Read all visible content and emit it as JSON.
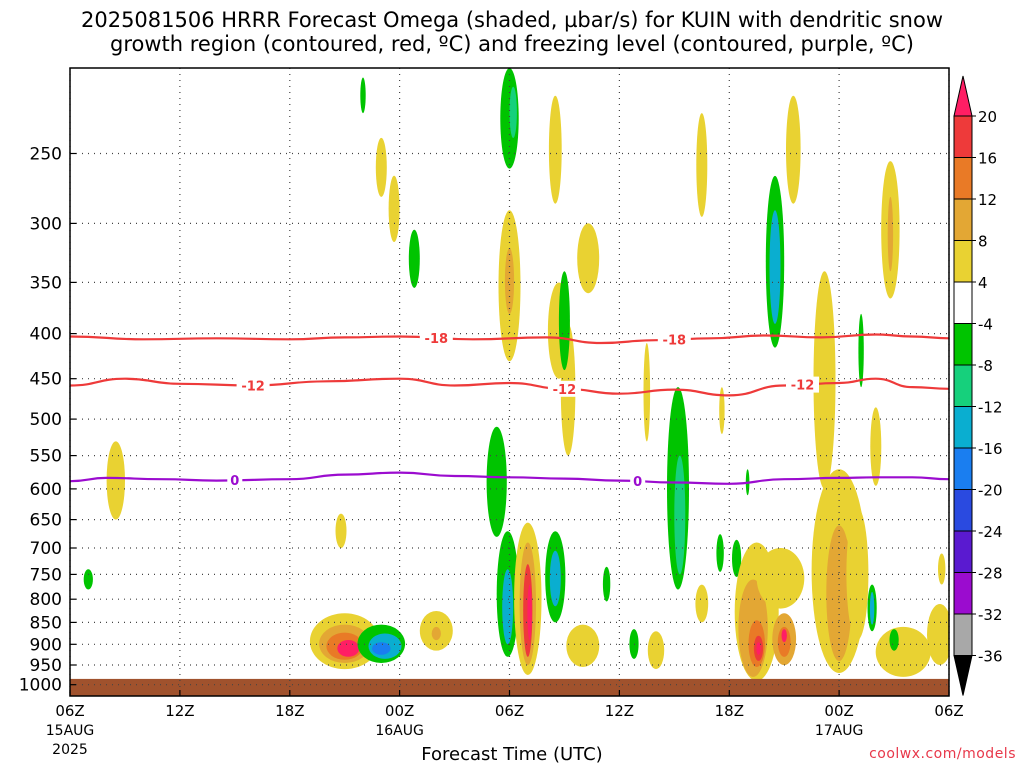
{
  "title": {
    "line1": "2025081506 HRRR Forecast Omega (shaded, µbar/s) for KUIN with dendritic snow",
    "line2": "growth region (contoured, red, ºC) and freezing level (contoured, purple, ºC)"
  },
  "credit": "coolwx.com/models",
  "chart_data": {
    "type": "heatmap",
    "xlabel": "Forecast Time (UTC)",
    "ylabel": "",
    "x_range_hours": [
      0,
      48
    ],
    "x_ticks": [
      {
        "h": 0,
        "label": "06Z",
        "sub": "15AUG",
        "sub2": "2025"
      },
      {
        "h": 6,
        "label": "12Z"
      },
      {
        "h": 12,
        "label": "18Z"
      },
      {
        "h": 18,
        "label": "00Z",
        "sub": "16AUG"
      },
      {
        "h": 24,
        "label": "06Z"
      },
      {
        "h": 30,
        "label": "12Z"
      },
      {
        "h": 36,
        "label": "18Z"
      },
      {
        "h": 42,
        "label": "00Z",
        "sub": "17AUG"
      },
      {
        "h": 48,
        "label": "06Z"
      }
    ],
    "y_ticks": [
      250,
      300,
      350,
      400,
      450,
      500,
      550,
      600,
      650,
      700,
      750,
      800,
      850,
      900,
      950,
      1000
    ],
    "y_range_hPa": [
      200,
      1030
    ],
    "y_scale": "log-pressure",
    "grid": true,
    "colorbar": {
      "labels": [
        20,
        16,
        12,
        8,
        4,
        -4,
        -8,
        -12,
        -16,
        -20,
        -24,
        -28,
        -32,
        -36
      ],
      "colors": [
        "#ff1e64",
        "#ee3a3a",
        "#e97a26",
        "#e3a734",
        "#e9d232",
        "#ffffff",
        "#00c400",
        "#16d07c",
        "#0aaed0",
        "#1a7ef0",
        "#2a4ae0",
        "#5a1ad0",
        "#9b0ccf",
        "#a8a8a8",
        "#000000"
      ]
    },
    "ground_level_hPa": 985,
    "ground_color": "#a0522d",
    "contours": [
      {
        "name": "temp-minus-18",
        "color": "#ee3a3a",
        "label": "-18",
        "label_h": [
          20,
          33
        ],
        "points": [
          [
            0,
            403
          ],
          [
            4,
            406
          ],
          [
            8,
            405
          ],
          [
            12,
            406
          ],
          [
            15,
            404
          ],
          [
            18,
            403
          ],
          [
            22,
            406
          ],
          [
            26,
            404
          ],
          [
            29,
            410
          ],
          [
            32,
            407
          ],
          [
            35,
            405
          ],
          [
            38,
            402
          ],
          [
            41,
            404
          ],
          [
            44,
            401
          ],
          [
            46,
            403
          ],
          [
            48,
            405
          ]
        ]
      },
      {
        "name": "temp-minus-12",
        "color": "#ee3a3a",
        "label": "-12",
        "label_h": [
          10,
          27,
          40
        ],
        "points": [
          [
            0,
            458
          ],
          [
            3,
            450
          ],
          [
            6,
            456
          ],
          [
            10,
            458
          ],
          [
            14,
            453
          ],
          [
            18,
            450
          ],
          [
            21,
            458
          ],
          [
            24,
            455
          ],
          [
            27,
            462
          ],
          [
            30,
            468
          ],
          [
            33,
            463
          ],
          [
            36,
            470
          ],
          [
            39,
            458
          ],
          [
            42,
            455
          ],
          [
            44,
            450
          ],
          [
            46,
            460
          ],
          [
            48,
            462
          ]
        ]
      },
      {
        "name": "freezing-level",
        "color": "#9b0ccf",
        "label": "0",
        "label_h": [
          9,
          31
        ],
        "points": [
          [
            0,
            588
          ],
          [
            2,
            583
          ],
          [
            5,
            585
          ],
          [
            8,
            587
          ],
          [
            12,
            585
          ],
          [
            15,
            578
          ],
          [
            18,
            575
          ],
          [
            21,
            580
          ],
          [
            24,
            582
          ],
          [
            27,
            584
          ],
          [
            30,
            587
          ],
          [
            33,
            590
          ],
          [
            36,
            592
          ],
          [
            39,
            585
          ],
          [
            42,
            583
          ],
          [
            44,
            582
          ],
          [
            46,
            582
          ],
          [
            48,
            585
          ]
        ]
      }
    ],
    "blobs": [
      {
        "h": 2.5,
        "p": 590,
        "rw": 0.5,
        "rp": 60,
        "v": 5
      },
      {
        "h": 1.0,
        "p": 760,
        "rw": 0.25,
        "rp": 20,
        "v": -6
      },
      {
        "h": 14.8,
        "p": 670,
        "rw": 0.3,
        "rp": 30,
        "v": 5
      },
      {
        "h": 15.0,
        "p": 895,
        "rw": 1.9,
        "rp": 65,
        "v": 7
      },
      {
        "h": 15.0,
        "p": 900,
        "rw": 1.4,
        "rp": 45,
        "v": 11
      },
      {
        "h": 15.0,
        "p": 905,
        "rw": 1.0,
        "rp": 32,
        "v": 14
      },
      {
        "h": 15.2,
        "p": 910,
        "rw": 0.6,
        "rp": 20,
        "v": 20
      },
      {
        "h": 17.0,
        "p": 900,
        "rw": 1.3,
        "rp": 45,
        "v": -7
      },
      {
        "h": 17.2,
        "p": 905,
        "rw": 0.9,
        "rp": 30,
        "v": -13
      },
      {
        "h": 17.0,
        "p": 910,
        "rw": 0.5,
        "rp": 15,
        "v": -17
      },
      {
        "h": 20.0,
        "p": 870,
        "rw": 0.9,
        "rp": 45,
        "v": 5
      },
      {
        "h": 20.0,
        "p": 875,
        "rw": 0.25,
        "rp": 15,
        "v": 8
      },
      {
        "h": 0.0,
        "p": 200,
        "rw": 0,
        "rp": 0,
        "v": 0
      },
      {
        "h": 17.0,
        "p": 260,
        "rw": 0.3,
        "rp": 20,
        "v": 5
      },
      {
        "h": 17.7,
        "p": 290,
        "rw": 0.3,
        "rp": 25,
        "v": 5
      },
      {
        "h": 18.8,
        "p": 330,
        "rw": 0.3,
        "rp": 25,
        "v": -6
      },
      {
        "h": 16.0,
        "p": 215,
        "rw": 0.15,
        "rp": 10,
        "v": -6
      },
      {
        "h": 24.0,
        "p": 360,
        "rw": 0.6,
        "rp": 70,
        "v": 5
      },
      {
        "h": 24.0,
        "p": 350,
        "rw": 0.25,
        "rp": 30,
        "v": 8
      },
      {
        "h": 24.0,
        "p": 220,
        "rw": 0.5,
        "rp": 40,
        "v": -7
      },
      {
        "h": 24.2,
        "p": 225,
        "rw": 0.2,
        "rp": 15,
        "v": -10
      },
      {
        "h": 23.3,
        "p": 595,
        "rw": 0.55,
        "rp": 85,
        "v": -7
      },
      {
        "h": 26.5,
        "p": 250,
        "rw": 0.35,
        "rp": 35,
        "v": 5
      },
      {
        "h": 26.7,
        "p": 400,
        "rw": 0.6,
        "rp": 50,
        "v": 5
      },
      {
        "h": 27.2,
        "p": 470,
        "rw": 0.4,
        "rp": 80,
        "v": 5
      },
      {
        "h": 27.0,
        "p": 390,
        "rw": 0.3,
        "rp": 50,
        "v": -7
      },
      {
        "h": 28.3,
        "p": 330,
        "rw": 0.6,
        "rp": 30,
        "v": 5
      },
      {
        "h": 23.9,
        "p": 800,
        "rw": 0.6,
        "rp": 130,
        "v": -7
      },
      {
        "h": 23.9,
        "p": 820,
        "rw": 0.3,
        "rp": 80,
        "v": -12
      },
      {
        "h": 25.0,
        "p": 815,
        "rw": 0.75,
        "rp": 160,
        "v": 5
      },
      {
        "h": 25.0,
        "p": 820,
        "rw": 0.45,
        "rp": 130,
        "v": 9
      },
      {
        "h": 25.0,
        "p": 830,
        "rw": 0.25,
        "rp": 100,
        "v": 16
      },
      {
        "h": 25.1,
        "p": 830,
        "rw": 0.12,
        "rp": 60,
        "v": 20
      },
      {
        "h": 26.5,
        "p": 760,
        "rw": 0.55,
        "rp": 90,
        "v": -7
      },
      {
        "h": 26.5,
        "p": 760,
        "rw": 0.3,
        "rp": 55,
        "v": -13
      },
      {
        "h": 28.0,
        "p": 905,
        "rw": 0.9,
        "rp": 50,
        "v": 5
      },
      {
        "h": 29.3,
        "p": 770,
        "rw": 0.2,
        "rp": 35,
        "v": -6
      },
      {
        "h": 30.8,
        "p": 900,
        "rw": 0.25,
        "rp": 35,
        "v": -7
      },
      {
        "h": 32.0,
        "p": 915,
        "rw": 0.45,
        "rp": 45,
        "v": 5
      },
      {
        "h": 31.5,
        "p": 470,
        "rw": 0.18,
        "rp": 60,
        "v": 5
      },
      {
        "h": 33.2,
        "p": 620,
        "rw": 0.6,
        "rp": 160,
        "v": -7
      },
      {
        "h": 33.3,
        "p": 650,
        "rw": 0.3,
        "rp": 100,
        "v": -11
      },
      {
        "h": 34.5,
        "p": 260,
        "rw": 0.3,
        "rp": 35,
        "v": 5
      },
      {
        "h": 35.6,
        "p": 490,
        "rw": 0.15,
        "rp": 30,
        "v": 5
      },
      {
        "h": 34.5,
        "p": 810,
        "rw": 0.35,
        "rp": 40,
        "v": 5
      },
      {
        "h": 35.5,
        "p": 710,
        "rw": 0.2,
        "rp": 35,
        "v": -7
      },
      {
        "h": 36.4,
        "p": 720,
        "rw": 0.25,
        "rp": 35,
        "v": -7
      },
      {
        "h": 37.0,
        "p": 590,
        "rw": 0.1,
        "rp": 20,
        "v": -7
      },
      {
        "h": 37.5,
        "p": 840,
        "rw": 1.2,
        "rp": 150,
        "v": 5
      },
      {
        "h": 37.3,
        "p": 870,
        "rw": 0.8,
        "rp": 110,
        "v": 8
      },
      {
        "h": 37.5,
        "p": 900,
        "rw": 0.45,
        "rp": 55,
        "v": 12
      },
      {
        "h": 37.6,
        "p": 910,
        "rw": 0.25,
        "rp": 30,
        "v": 16
      },
      {
        "h": 37.6,
        "p": 910,
        "rw": 0.12,
        "rp": 15,
        "v": 20
      },
      {
        "h": 39.0,
        "p": 890,
        "rw": 0.65,
        "rp": 60,
        "v": 8
      },
      {
        "h": 39.0,
        "p": 895,
        "rw": 0.35,
        "rp": 35,
        "v": 14
      },
      {
        "h": 39.0,
        "p": 880,
        "rw": 0.15,
        "rp": 15,
        "v": 20
      },
      {
        "h": 38.8,
        "p": 760,
        "rw": 1.3,
        "rp": 60,
        "v": 5
      },
      {
        "h": 38.5,
        "p": 340,
        "rw": 0.5,
        "rp": 75,
        "v": -7
      },
      {
        "h": 38.5,
        "p": 340,
        "rw": 0.3,
        "rp": 50,
        "v": -12
      },
      {
        "h": 39.5,
        "p": 250,
        "rw": 0.4,
        "rp": 35,
        "v": 5
      },
      {
        "h": 41.2,
        "p": 470,
        "rw": 0.6,
        "rp": 130,
        "v": 5
      },
      {
        "h": 42.0,
        "p": 770,
        "rw": 1.5,
        "rp": 200,
        "v": 5
      },
      {
        "h": 42.0,
        "p": 800,
        "rw": 0.7,
        "rp": 140,
        "v": 8
      },
      {
        "h": 42.3,
        "p": 780,
        "rw": 0.4,
        "rp": 100,
        "v": 10
      },
      {
        "h": 43.0,
        "p": 760,
        "rw": 0.6,
        "rp": 130,
        "v": 5
      },
      {
        "h": 44.8,
        "p": 310,
        "rw": 0.5,
        "rp": 55,
        "v": 5
      },
      {
        "h": 44.8,
        "p": 310,
        "rw": 0.15,
        "rp": 30,
        "v": 9
      },
      {
        "h": 44.0,
        "p": 540,
        "rw": 0.3,
        "rp": 55,
        "v": 5
      },
      {
        "h": 43.8,
        "p": 820,
        "rw": 0.25,
        "rp": 50,
        "v": -7
      },
      {
        "h": 43.8,
        "p": 820,
        "rw": 0.12,
        "rp": 35,
        "v": -12
      },
      {
        "h": 45.5,
        "p": 920,
        "rw": 1.5,
        "rp": 60,
        "v": 5
      },
      {
        "h": 47.5,
        "p": 880,
        "rw": 0.7,
        "rp": 70,
        "v": 5
      },
      {
        "h": 47.6,
        "p": 740,
        "rw": 0.2,
        "rp": 30,
        "v": 5
      },
      {
        "h": 45.0,
        "p": 890,
        "rw": 0.25,
        "rp": 25,
        "v": -7
      },
      {
        "h": 43.2,
        "p": 420,
        "rw": 0.15,
        "rp": 40,
        "v": -7
      }
    ]
  }
}
